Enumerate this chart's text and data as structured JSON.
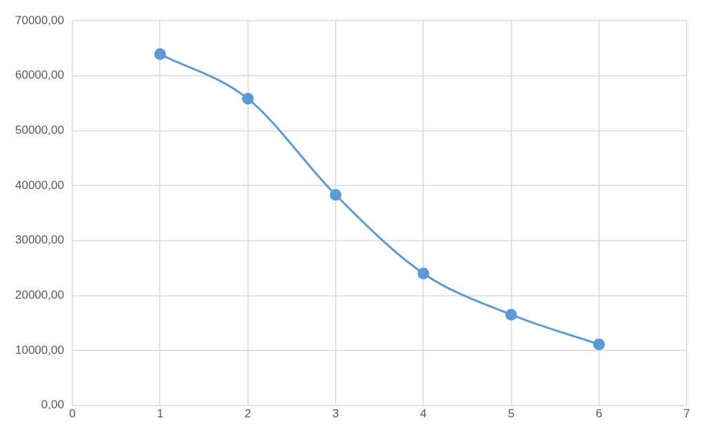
{
  "chart_data": {
    "type": "line",
    "x": [
      1,
      2,
      3,
      4,
      5,
      6
    ],
    "series": [
      {
        "color": "#5b9bd5",
        "values": [
          63900,
          55800,
          38300,
          24000,
          16500,
          11100
        ]
      }
    ],
    "xlim": [
      0,
      7
    ],
    "xticks": [
      0,
      1,
      2,
      3,
      4,
      5,
      6,
      7
    ],
    "ylim": [
      0,
      70000
    ],
    "yticks": [
      {
        "value": 0,
        "label": "0,00"
      },
      {
        "value": 10000,
        "label": "10000,00"
      },
      {
        "value": 20000,
        "label": "20000,00"
      },
      {
        "value": 30000,
        "label": "30000,00"
      },
      {
        "value": 40000,
        "label": "40000,00"
      },
      {
        "value": 50000,
        "label": "50000,00"
      },
      {
        "value": 60000,
        "label": "60000,00"
      },
      {
        "value": 70000,
        "label": "70000,00"
      }
    ],
    "grid": true,
    "legend": false,
    "marker": "circle",
    "line_style": "solid"
  }
}
